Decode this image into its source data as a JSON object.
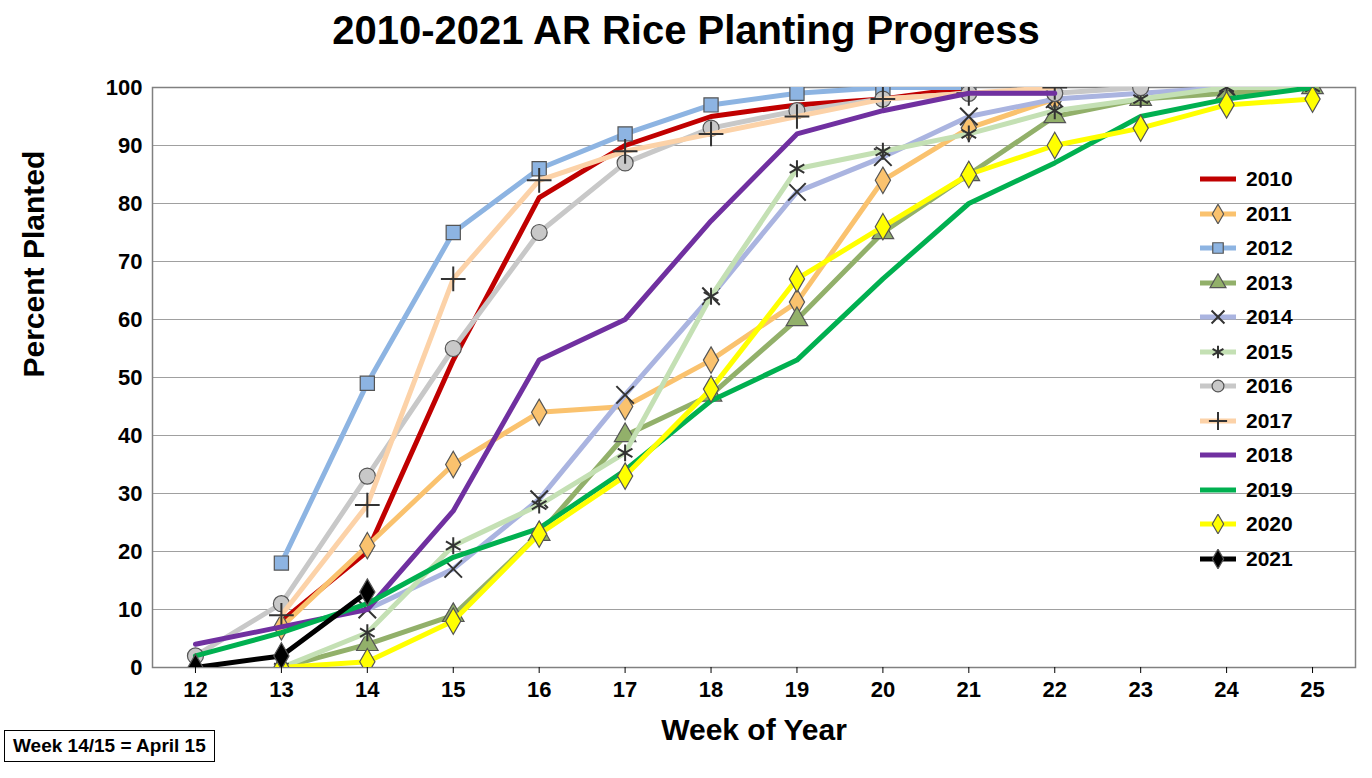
{
  "chart_data": {
    "type": "line",
    "title": "2010-2021 AR Rice Planting Progress",
    "x_label": "Week of Year",
    "y_label": "Percent Planted",
    "annotation": "Week 14/15 = April 15",
    "x": [
      12,
      13,
      14,
      15,
      16,
      17,
      18,
      19,
      20,
      21,
      22,
      23,
      24,
      25
    ],
    "xlim": [
      11.5,
      25.5
    ],
    "xticks": [
      12,
      13,
      14,
      15,
      16,
      17,
      18,
      19,
      20,
      21,
      22,
      23,
      24,
      25
    ],
    "ylim": [
      0,
      100
    ],
    "yticks": [
      0,
      10,
      20,
      30,
      40,
      50,
      60,
      70,
      80,
      90,
      100
    ],
    "grid": true,
    "legend": "right",
    "series": [
      {
        "name": "2010",
        "color": "#c00000",
        "marker": "none",
        "values": [
          null,
          8,
          20,
          53,
          81,
          90,
          95,
          97,
          98,
          100,
          null,
          null,
          null,
          null
        ]
      },
      {
        "name": "2011",
        "color": "#fac26e",
        "marker": "diamond",
        "values": [
          null,
          7,
          21,
          35,
          44,
          45,
          53,
          63,
          84,
          93,
          98,
          null,
          null,
          null
        ]
      },
      {
        "name": "2012",
        "color": "#8db4e2",
        "marker": "square",
        "values": [
          null,
          18,
          49,
          75,
          86,
          92,
          97,
          99,
          100,
          100,
          null,
          null,
          null,
          null
        ]
      },
      {
        "name": "2013",
        "color": "#92b06a",
        "marker": "triangle",
        "values": [
          null,
          0,
          4,
          9,
          23,
          40,
          47,
          60,
          75,
          85,
          95,
          98,
          99,
          100
        ]
      },
      {
        "name": "2014",
        "color": "#aab4e0",
        "marker": "x",
        "values": [
          null,
          null,
          10,
          17,
          29,
          47,
          64,
          82,
          88,
          95,
          98,
          99,
          100,
          null
        ]
      },
      {
        "name": "2015",
        "color": "#c4e0b4",
        "marker": "asterisk",
        "values": [
          null,
          0,
          6,
          21,
          28,
          37,
          64,
          86,
          89,
          92,
          96,
          98,
          100,
          100
        ]
      },
      {
        "name": "2016",
        "color": "#c8c8c8",
        "marker": "circle",
        "values": [
          2,
          11,
          33,
          55,
          75,
          87,
          93,
          96,
          98,
          99,
          99,
          100,
          null,
          null
        ]
      },
      {
        "name": "2017",
        "color": "#fcd2a8",
        "marker": "plus",
        "values": [
          null,
          9,
          28,
          67,
          84,
          89,
          92,
          95,
          98,
          99,
          100,
          null,
          null,
          null
        ]
      },
      {
        "name": "2018",
        "color": "#7030a0",
        "marker": "none",
        "values": [
          4,
          7,
          10,
          27,
          53,
          60,
          77,
          92,
          96,
          99,
          99,
          null,
          null,
          null
        ]
      },
      {
        "name": "2019",
        "color": "#00b050",
        "marker": "none",
        "values": [
          2,
          6,
          11,
          19,
          24,
          34,
          46,
          53,
          67,
          80,
          87,
          95,
          98,
          100
        ]
      },
      {
        "name": "2020",
        "color": "#ffff00",
        "marker": "diamond",
        "values": [
          null,
          0,
          1,
          8,
          23,
          33,
          48,
          67,
          76,
          85,
          90,
          93,
          97,
          98
        ]
      },
      {
        "name": "2021",
        "color": "#000000",
        "marker": "diamond",
        "values": [
          0,
          2,
          13,
          null,
          null,
          null,
          null,
          null,
          null,
          null,
          null,
          null,
          null,
          null
        ]
      }
    ]
  }
}
